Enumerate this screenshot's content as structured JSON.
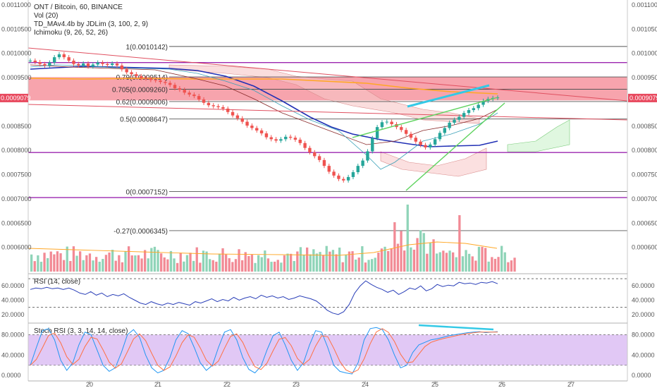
{
  "header": {
    "symbol_line": "ONT / Bitcoin, 60, BINANCE",
    "vol_label": "Vol (20)",
    "td_label": "TD_MAv4.4b by JDLim (3, 100, 2, 9)",
    "ichimoku_label": "Ichimoku (9, 26, 52, 26)"
  },
  "panes": {
    "rsi_title": "RSI (14, close)",
    "stoch_title": "Stoch RSI (3, 3, 14, 14, close)"
  },
  "price_tag": "0.0009079",
  "colors": {
    "up": "#26a69a",
    "down": "#ef5350",
    "volume_up": "#8fd4b8",
    "volume_down": "#f28a95",
    "fib_line": "#555555",
    "purple_level": "#9c27b0",
    "ma_blue": "#2130b5",
    "resistance_band": "#f05a6a",
    "rsi_line": "#2a3fb8",
    "stoch_k": "#2196f3",
    "stoch_d": "#ff7043",
    "stoch_band": "#e1c8f5",
    "cyan": "#33c9e6",
    "green": "#5fd35f",
    "orange": "#ffa726"
  },
  "chart_data": {
    "type": "candlestick",
    "instrument": "ONT / Bitcoin",
    "timeframe": "60",
    "exchange": "BINANCE",
    "x_ticks": [
      "20",
      "21",
      "22",
      "23",
      "24",
      "25",
      "26",
      "27"
    ],
    "price_axis": {
      "ticks": [
        "0.0011000",
        "0.0010500",
        "0.0010000",
        "0.0009500",
        "0.0008500",
        "0.0008000",
        "0.0007500",
        "0.0007000",
        "0.0006500",
        "0.0006000"
      ],
      "ylim": [
        0.00055,
        0.00111
      ]
    },
    "fibonacci": [
      {
        "label": "1(0.0010142)",
        "value": 0.0010142
      },
      {
        "label": "0.79(0.0009514)",
        "value": 0.0009514
      },
      {
        "label": "0.705(0.0009260)",
        "value": 0.000926
      },
      {
        "label": "0.62(0.0009006)",
        "value": 0.0009006
      },
      {
        "label": "0.5(0.0008647)",
        "value": 0.0008647
      },
      {
        "label": "0(0.0007152)",
        "value": 0.0007152
      },
      {
        "label": "-0.27(0.0006345)",
        "value": 0.0006345
      }
    ],
    "horizontal_levels": [
      0.000981,
      0.0007955,
      0.0007027
    ],
    "close_series": [
      0.000985,
      0.000982,
      0.000978,
      0.000975,
      0.000981,
      0.000992,
      0.000998,
      0.000992,
      0.000985,
      0.000978,
      0.000975,
      0.000979,
      0.000973,
      0.000977,
      0.000981,
      0.000978,
      0.000976,
      0.000979,
      0.000975,
      0.000967,
      0.000961,
      0.000957,
      0.000953,
      0.000949,
      0.000948,
      0.000945,
      0.000944,
      0.000941,
      0.000939,
      0.000935,
      0.000928,
      0.000925,
      0.000919,
      0.000915,
      0.000912,
      0.000905,
      0.000898,
      0.000893,
      0.000891,
      0.000889,
      0.000886,
      0.000879,
      0.000872,
      0.000866,
      0.000859,
      0.000851,
      0.000846,
      0.000841,
      0.000835,
      0.000827,
      0.000823,
      0.00082,
      0.000823,
      0.000828,
      0.000826,
      0.000822,
      0.000815,
      0.000805,
      0.000796,
      0.000788,
      0.00078,
      0.000768,
      0.000756,
      0.000748,
      0.000741,
      0.000738,
      0.000745,
      0.000755,
      0.000768,
      0.000779,
      0.000798,
      0.000825,
      0.000848,
      0.000858,
      0.000859,
      0.000854,
      0.000848,
      0.000842,
      0.000834,
      0.000826,
      0.000818,
      0.000811,
      0.000806,
      0.000812,
      0.000823,
      0.000836,
      0.000846,
      0.000857,
      0.000863,
      0.000869,
      0.000877,
      0.000883,
      0.000887,
      0.000894,
      0.000902,
      0.000906,
      0.000908,
      0.000909
    ],
    "rsi_axis": {
      "ticks": [
        "60.0000",
        "40.0000",
        "20.0000"
      ],
      "ylim": [
        10,
        75
      ],
      "bands": [
        70,
        30
      ]
    },
    "rsi_values": [
      55,
      57,
      56,
      58,
      56,
      57,
      55,
      57,
      54,
      50,
      48,
      52,
      47,
      50,
      45,
      48,
      46,
      49,
      44,
      40,
      36,
      34,
      38,
      35,
      33,
      36,
      34,
      37,
      35,
      33,
      38,
      36,
      39,
      42,
      38,
      41,
      39,
      44,
      40,
      43,
      45,
      42,
      47,
      44,
      46,
      43,
      45,
      41,
      43,
      46,
      44,
      42,
      39,
      33,
      26,
      22,
      20,
      24,
      34,
      50,
      60,
      67,
      62,
      58,
      55,
      51,
      54,
      48,
      52,
      57,
      55,
      60,
      53,
      56,
      62,
      59,
      61,
      60,
      65,
      63,
      64,
      62,
      65,
      64,
      66,
      63
    ],
    "stoch_axis": {
      "ticks": [
        "80.0000",
        "40.0000",
        "0.0000"
      ],
      "ylim": [
        -8,
        100
      ],
      "bands": [
        80,
        20
      ]
    },
    "stoch_k": [
      20,
      55,
      88,
      92,
      70,
      30,
      10,
      25,
      60,
      85,
      80,
      50,
      20,
      8,
      15,
      45,
      80,
      90,
      75,
      40,
      15,
      5,
      10,
      35,
      70,
      88,
      82,
      55,
      25,
      10,
      20,
      55,
      85,
      90,
      70,
      35,
      12,
      5,
      18,
      50,
      78,
      85,
      60,
      30,
      10,
      25,
      60,
      88,
      85,
      55,
      20,
      8,
      5,
      3,
      25,
      70,
      92,
      94,
      90,
      70,
      40,
      15,
      20,
      45,
      60,
      65,
      70,
      72,
      75,
      78,
      80,
      82,
      84,
      85,
      86,
      84,
      85,
      86
    ]
  }
}
